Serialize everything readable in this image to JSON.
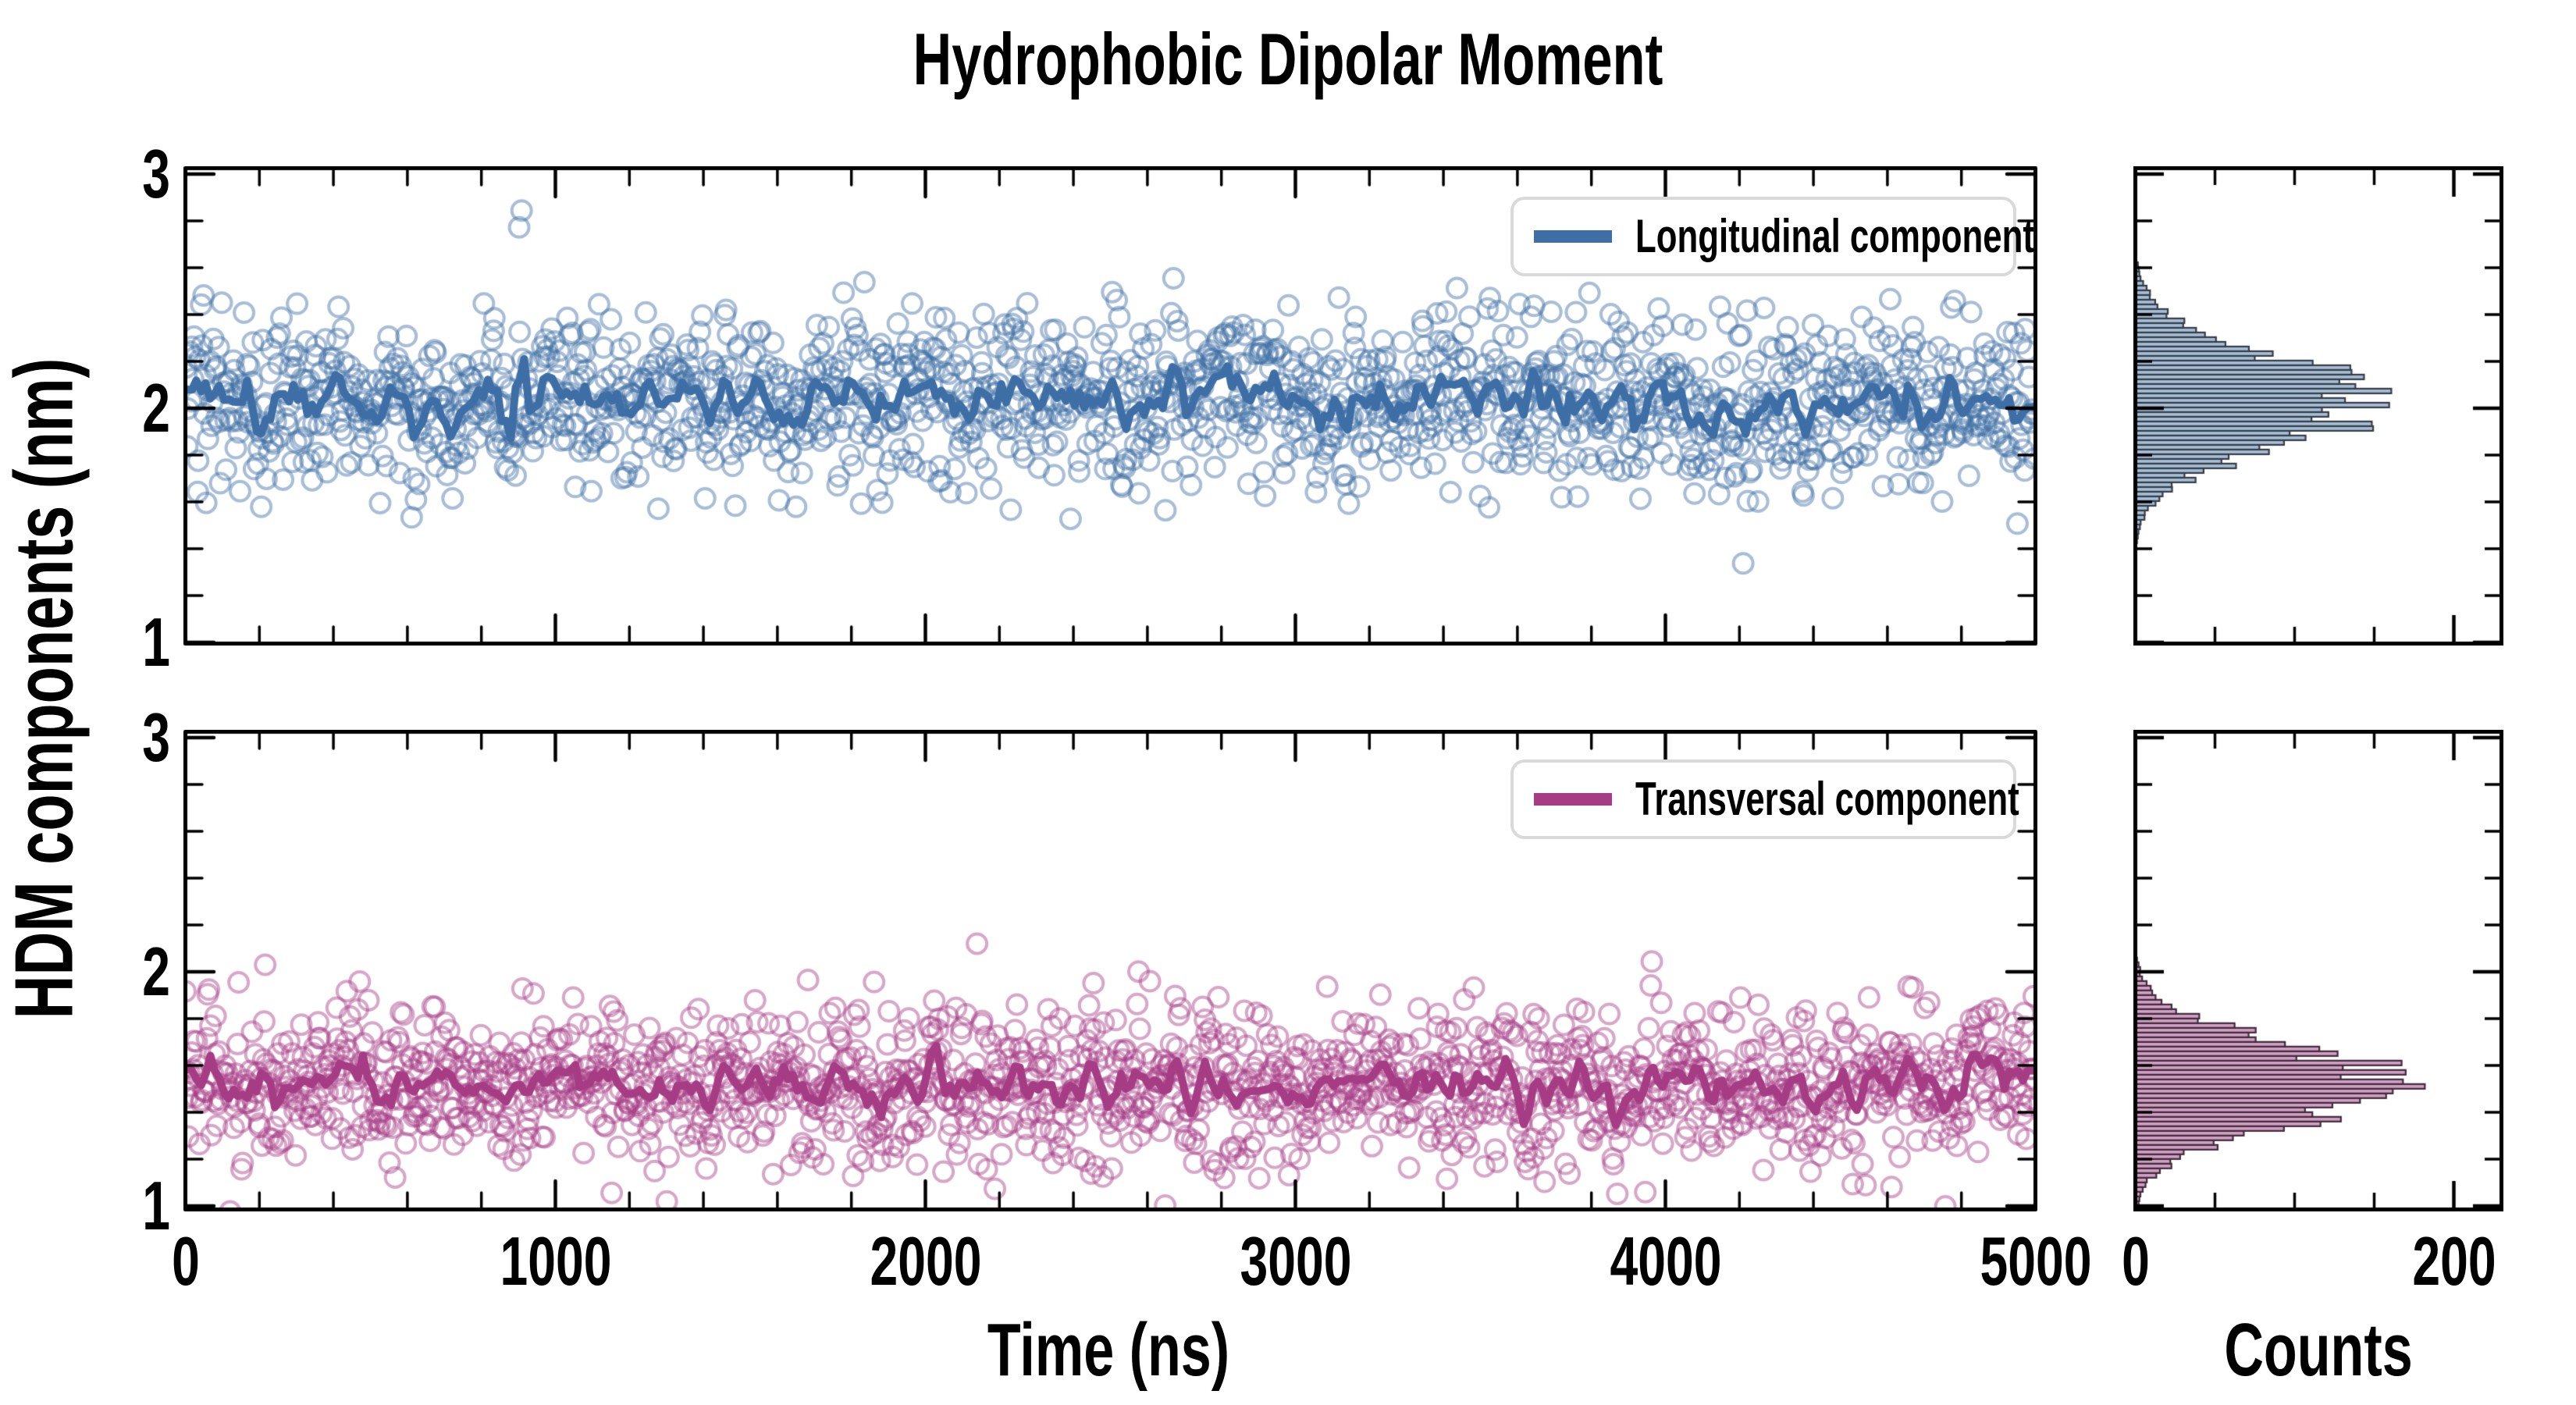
{
  "title": "Hydrophobic Dipolar Moment",
  "y_axis_label": "HDM components (nm)",
  "x_axis_label": "Time (ns)",
  "counts_axis_label": "Counts",
  "colors": {
    "axis": "#000000",
    "legend_border": "#d9d9d9",
    "longitudinal_line": "#3d6ea5",
    "longitudinal_scatter": "rgba(61,110,165,0.45)",
    "longitudinal_hist_fill": "#a7bdd6",
    "longitudinal_hist_edge": "#343c46",
    "transversal_line": "#a63c84",
    "transversal_scatter": "rgba(166,60,132,0.45)",
    "transversal_hist_fill": "#d09fc2",
    "transversal_hist_edge": "#3f2b3a"
  },
  "chart_data": [
    {
      "type": "scatter",
      "panel": "top",
      "legend_label": "Longitudinal component",
      "x_label": "Time (ns)",
      "y_label": "HDM components (nm)",
      "x_range": [
        0,
        5000
      ],
      "y_range": [
        1,
        3
      ],
      "x_major_ticks": [
        0,
        1000,
        2000,
        3000,
        4000,
        5000
      ],
      "x_minor_step": 200,
      "y_major_ticks": [
        3,
        2,
        1
      ],
      "y_minor_step": 0.2,
      "grid": false,
      "legend_position": "upper right",
      "series": [
        {
          "name": "Longitudinal samples",
          "style": "open-circle-scatter",
          "n_points": 1600,
          "mean_nm": 2.03,
          "std_nm": 0.19,
          "observed_range_nm": [
            1.5,
            2.68
          ]
        },
        {
          "name": "Longitudinal running average",
          "style": "thick-line",
          "mean_nm": 2.03,
          "fluctuation_nm": 0.07,
          "window": 11
        }
      ],
      "histogram": {
        "orientation": "horizontal-bars",
        "x_label": "Counts",
        "counts_range": [
          0,
          230
        ],
        "counts_major_ticks": [
          0,
          200
        ],
        "counts_minor_step": 50,
        "bin_width_nm": 0.02,
        "center_nm": 2.03,
        "sigma_nm": 0.19,
        "peak_counts": 150
      },
      "seed": 42
    },
    {
      "type": "scatter",
      "panel": "bottom",
      "legend_label": "Transversal component",
      "x_label": "Time (ns)",
      "y_label": "HDM components (nm)",
      "x_range": [
        0,
        5000
      ],
      "y_range": [
        1,
        3
      ],
      "x_major_ticks": [
        0,
        1000,
        2000,
        3000,
        4000,
        5000
      ],
      "x_minor_step": 200,
      "y_major_ticks": [
        3,
        2,
        1
      ],
      "y_minor_step": 0.2,
      "grid": false,
      "legend_position": "upper right",
      "series": [
        {
          "name": "Transversal samples",
          "style": "open-circle-scatter",
          "n_points": 1600,
          "mean_nm": 1.52,
          "std_nm": 0.17,
          "observed_range_nm": [
            1.02,
            2.2
          ]
        },
        {
          "name": "Transversal running average",
          "style": "thick-line",
          "mean_nm": 1.52,
          "fluctuation_nm": 0.07,
          "window": 11
        }
      ],
      "histogram": {
        "orientation": "horizontal-bars",
        "x_label": "Counts",
        "counts_range": [
          0,
          230
        ],
        "counts_major_ticks": [
          0,
          200
        ],
        "counts_minor_step": 50,
        "bin_width_nm": 0.02,
        "center_nm": 1.52,
        "sigma_nm": 0.17,
        "peak_counts": 160
      },
      "seed": 7
    }
  ]
}
